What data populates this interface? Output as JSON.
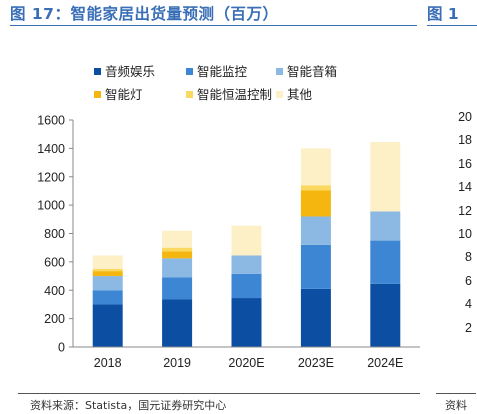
{
  "header": {
    "title": "图 17：智能家居出货量预测（百万）",
    "next_title": "图 1"
  },
  "footer": {
    "source": "资料来源：Statista，国元证券研究中心",
    "next_source": "资料"
  },
  "chart_data": {
    "type": "bar",
    "stacked": true,
    "categories": [
      "2018",
      "2019",
      "2020E",
      "2023E",
      "2024E"
    ],
    "series": [
      {
        "name": "音频娱乐",
        "color": "#0b4ea2",
        "values": [
          300,
          335,
          345,
          410,
          445
        ]
      },
      {
        "name": "智能监控",
        "color": "#3c86d4",
        "values": [
          100,
          155,
          170,
          310,
          305
        ]
      },
      {
        "name": "智能音箱",
        "color": "#8cb8e4",
        "values": [
          100,
          135,
          130,
          200,
          205
        ]
      },
      {
        "name": "智能灯",
        "color": "#f5b70f",
        "values": [
          35,
          50,
          0,
          185,
          0
        ]
      },
      {
        "name": "智能恒温控制",
        "color": "#fbd860",
        "values": [
          15,
          25,
          0,
          35,
          0
        ]
      },
      {
        "name": "其他",
        "color": "#fdefc6",
        "values": [
          95,
          120,
          210,
          260,
          490
        ]
      }
    ],
    "ylim": [
      0,
      1600
    ],
    "yticks": [
      0,
      200,
      400,
      600,
      800,
      1000,
      1200,
      1400,
      1600
    ],
    "legend": "top",
    "grid": false
  },
  "next_chart": {
    "visible_ticks": [
      "20",
      "18",
      "16",
      "14",
      "12",
      "10",
      "8",
      "6",
      "4",
      "2"
    ]
  }
}
